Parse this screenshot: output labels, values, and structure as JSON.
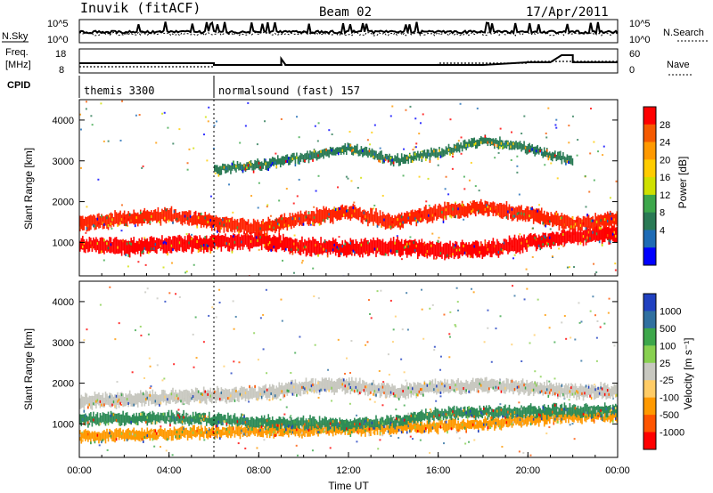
{
  "header": {
    "station": "Inuvik (fitACF)",
    "beam": "Beam 02",
    "date": "17/Apr/2011"
  },
  "strip_labels": {
    "nsky": "N.Sky",
    "nsearch": "N.Search",
    "freq_top": "Freq.",
    "freq_unit": "[MHz]",
    "nave": "Nave",
    "cpid": "CPID",
    "nsky_ticks": [
      "10^5",
      "10^0"
    ],
    "freq_ticks": [
      "18",
      "8"
    ],
    "nave_ticks": [
      "60",
      "0"
    ]
  },
  "cpid_segments": [
    {
      "label": "themis 3300",
      "start_hour": 0,
      "end_hour": 6
    },
    {
      "label": "normalsound (fast) 157",
      "start_hour": 6,
      "end_hour": 24
    }
  ],
  "chart_data": [
    {
      "type": "heatmap",
      "name": "power",
      "ylabel": "Slant Range [km]",
      "yticks": [
        1000,
        2000,
        3000,
        4000
      ],
      "ylim": [
        180,
        4500
      ],
      "xlim": [
        0,
        24
      ],
      "colorbar": {
        "label": "Power [dB]",
        "ticks": [
          "28",
          "24",
          "20",
          "16",
          "12",
          "8",
          "4"
        ],
        "colors": [
          "#ff0000",
          "#f55a00",
          "#ff9900",
          "#ffcc00",
          "#cfe000",
          "#3da74b",
          "#2a7a55",
          "#1e6bb5",
          "#0000ff"
        ]
      },
      "bands": [
        {
          "name": "lower echo",
          "color": "#ff0000",
          "knots": [
            [
              0,
              950
            ],
            [
              2,
              880
            ],
            [
              4,
              960
            ],
            [
              6,
              980
            ],
            [
              8,
              1050
            ],
            [
              10,
              900
            ],
            [
              12,
              850
            ],
            [
              14,
              900
            ],
            [
              16,
              800
            ],
            [
              18,
              820
            ],
            [
              20,
              1000
            ],
            [
              22,
              1150
            ],
            [
              24,
              1200
            ]
          ],
          "width_km": 350
        },
        {
          "name": "upper echo",
          "color": "#ff2200",
          "knots": [
            [
              0,
              1450
            ],
            [
              2,
              1600
            ],
            [
              4,
              1650
            ],
            [
              6,
              1500
            ],
            [
              8,
              1350
            ],
            [
              10,
              1600
            ],
            [
              12,
              1750
            ],
            [
              14,
              1500
            ],
            [
              16,
              1750
            ],
            [
              18,
              1850
            ],
            [
              20,
              1700
            ],
            [
              22,
              1450
            ],
            [
              24,
              1550
            ]
          ],
          "width_km": 320
        },
        {
          "name": "3000 km scatter",
          "color": "#2a7a55",
          "knots": [
            [
              6,
              2800
            ],
            [
              8,
              2900
            ],
            [
              10,
              3100
            ],
            [
              12,
              3300
            ],
            [
              14,
              3000
            ],
            [
              16,
              3200
            ],
            [
              18,
              3500
            ],
            [
              20,
              3300
            ],
            [
              22,
              3000
            ]
          ],
          "width_km": 200
        }
      ]
    },
    {
      "type": "heatmap",
      "name": "velocity",
      "ylabel": "Slant Range [km]",
      "yticks": [
        1000,
        2000,
        3000,
        4000
      ],
      "ylim": [
        180,
        4500
      ],
      "xlim": [
        0,
        24
      ],
      "xlabel": "Time UT",
      "xticks": [
        "00:00",
        "04:00",
        "08:00",
        "12:00",
        "16:00",
        "20:00",
        "00:00"
      ],
      "colorbar": {
        "label": "Velocity [m s⁻¹]",
        "ticks": [
          "1000",
          "500",
          "100",
          "25",
          "-25",
          "-100",
          "-500",
          "-1000"
        ],
        "colors": [
          "#2040c0",
          "#3070a0",
          "#3da74b",
          "#88d050",
          "#c8c8c0",
          "#ffcc66",
          "#ff9900",
          "#ff5500",
          "#ff0000"
        ]
      },
      "bands": [
        {
          "name": "near echo",
          "color": "#ff9900",
          "knots": [
            [
              0,
              700
            ],
            [
              3,
              750
            ],
            [
              6,
              800
            ],
            [
              10,
              850
            ],
            [
              14,
              900
            ],
            [
              18,
              1000
            ],
            [
              22,
              1200
            ],
            [
              24,
              1200
            ]
          ],
          "width_km": 250
        },
        {
          "name": "1 Mm echo",
          "color": "#2e8b57",
          "knots": [
            [
              0,
              1100
            ],
            [
              4,
              1150
            ],
            [
              8,
              1050
            ],
            [
              12,
              1000
            ],
            [
              14,
              1050
            ],
            [
              16,
              1250
            ],
            [
              20,
              1300
            ],
            [
              24,
              1350
            ]
          ],
          "width_km": 250
        },
        {
          "name": "grey scatter",
          "color": "#c8c8c0",
          "knots": [
            [
              0,
              1550
            ],
            [
              4,
              1650
            ],
            [
              6,
              1700
            ],
            [
              8,
              1750
            ],
            [
              10,
              1900
            ],
            [
              12,
              1950
            ],
            [
              14,
              1800
            ],
            [
              16,
              1900
            ],
            [
              18,
              1950
            ],
            [
              20,
              1900
            ],
            [
              22,
              1800
            ],
            [
              24,
              1800
            ]
          ],
          "width_km": 300
        }
      ]
    }
  ]
}
